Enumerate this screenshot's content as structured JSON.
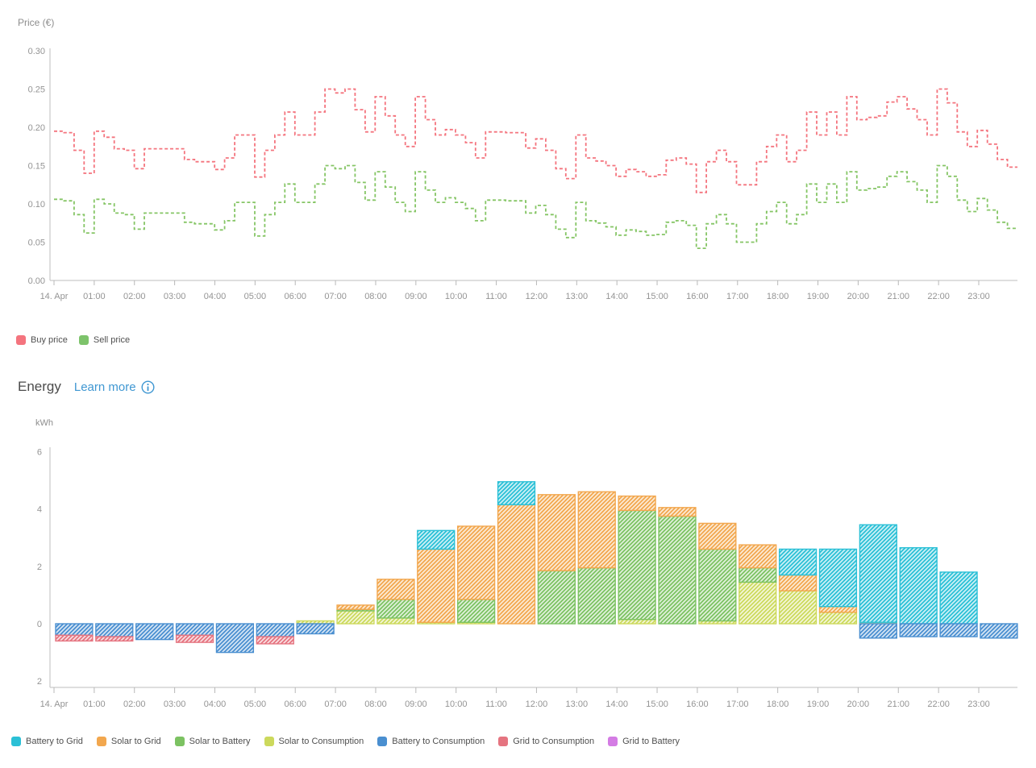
{
  "price_chart": {
    "title": "Price (€)",
    "y_ticks": [
      {
        "label": "0.30",
        "value": 0.3
      },
      {
        "label": "0.25",
        "value": 0.25
      },
      {
        "label": "0.20",
        "value": 0.2
      },
      {
        "label": "0.15",
        "value": 0.15
      },
      {
        "label": "0.10",
        "value": 0.1
      },
      {
        "label": "0.05",
        "value": 0.05
      },
      {
        "label": "0.00",
        "value": 0.0
      }
    ],
    "x_labels": [
      "14. Apr",
      "01:00",
      "02:00",
      "03:00",
      "04:00",
      "05:00",
      "06:00",
      "07:00",
      "08:00",
      "09:00",
      "10:00",
      "11:00",
      "12:00",
      "13:00",
      "14:00",
      "15:00",
      "16:00",
      "17:00",
      "18:00",
      "19:00",
      "20:00",
      "21:00",
      "22:00",
      "23:00"
    ],
    "legend": [
      {
        "label": "Buy price",
        "color": "#f4747e"
      },
      {
        "label": "Sell price",
        "color": "#7dc36b"
      }
    ]
  },
  "energy_section": {
    "title": "Energy",
    "link_label": "Learn more",
    "info_icon": "info-icon",
    "link_color": "#3f97d2"
  },
  "energy_chart": {
    "unit": "kWh",
    "y_ticks": [
      {
        "label": "6",
        "value": 6
      },
      {
        "label": "4",
        "value": 4
      },
      {
        "label": "2",
        "value": 2
      },
      {
        "label": "0",
        "value": 0
      },
      {
        "label": "2",
        "value": -2
      }
    ],
    "x_labels": [
      "14. Apr",
      "01:00",
      "02:00",
      "03:00",
      "04:00",
      "05:00",
      "06:00",
      "07:00",
      "08:00",
      "09:00",
      "10:00",
      "11:00",
      "12:00",
      "13:00",
      "14:00",
      "15:00",
      "16:00",
      "17:00",
      "18:00",
      "19:00",
      "20:00",
      "21:00",
      "22:00",
      "23:00"
    ]
  },
  "chart_data": [
    {
      "type": "line",
      "subtype": "step-dashed",
      "title": "Price (€)",
      "ylabel": "Price (€)",
      "ylim": [
        0,
        0.3
      ],
      "interval_minutes": 15,
      "x_start": "14. Apr 00:00",
      "x_end": "15. Apr 00:00",
      "grid": false,
      "legend_position": "bottom-left",
      "series": [
        {
          "name": "Buy price",
          "color": "#f4747e",
          "values": [
            0.195,
            0.193,
            0.17,
            0.14,
            0.195,
            0.187,
            0.172,
            0.17,
            0.146,
            0.172,
            0.172,
            0.172,
            0.172,
            0.158,
            0.155,
            0.155,
            0.145,
            0.16,
            0.19,
            0.19,
            0.135,
            0.17,
            0.19,
            0.22,
            0.19,
            0.19,
            0.22,
            0.25,
            0.245,
            0.25,
            0.223,
            0.194,
            0.24,
            0.215,
            0.19,
            0.175,
            0.24,
            0.21,
            0.19,
            0.197,
            0.19,
            0.18,
            0.16,
            0.194,
            0.194,
            0.193,
            0.193,
            0.173,
            0.185,
            0.17,
            0.146,
            0.133,
            0.19,
            0.16,
            0.156,
            0.15,
            0.136,
            0.145,
            0.142,
            0.136,
            0.138,
            0.157,
            0.16,
            0.152,
            0.115,
            0.155,
            0.17,
            0.155,
            0.125,
            0.125,
            0.155,
            0.175,
            0.19,
            0.155,
            0.17,
            0.22,
            0.19,
            0.22,
            0.19,
            0.24,
            0.21,
            0.213,
            0.215,
            0.233,
            0.24,
            0.224,
            0.21,
            0.19,
            0.25,
            0.232,
            0.194,
            0.175,
            0.196,
            0.178,
            0.158,
            0.148
          ]
        },
        {
          "name": "Sell price",
          "color": "#85c565",
          "values": [
            0.106,
            0.104,
            0.086,
            0.062,
            0.106,
            0.1,
            0.088,
            0.086,
            0.067,
            0.088,
            0.088,
            0.088,
            0.088,
            0.076,
            0.074,
            0.074,
            0.066,
            0.078,
            0.102,
            0.102,
            0.058,
            0.086,
            0.102,
            0.126,
            0.102,
            0.102,
            0.126,
            0.15,
            0.146,
            0.15,
            0.128,
            0.105,
            0.142,
            0.122,
            0.102,
            0.09,
            0.142,
            0.118,
            0.102,
            0.108,
            0.102,
            0.094,
            0.078,
            0.105,
            0.105,
            0.104,
            0.104,
            0.088,
            0.098,
            0.086,
            0.067,
            0.056,
            0.102,
            0.078,
            0.075,
            0.07,
            0.059,
            0.066,
            0.064,
            0.059,
            0.06,
            0.076,
            0.078,
            0.072,
            0.042,
            0.074,
            0.086,
            0.074,
            0.05,
            0.05,
            0.074,
            0.09,
            0.102,
            0.074,
            0.086,
            0.126,
            0.102,
            0.126,
            0.102,
            0.142,
            0.118,
            0.12,
            0.122,
            0.136,
            0.142,
            0.129,
            0.118,
            0.102,
            0.15,
            0.136,
            0.105,
            0.09,
            0.107,
            0.092,
            0.076,
            0.068
          ]
        }
      ]
    },
    {
      "type": "bar",
      "stacked": true,
      "hatched": true,
      "title": "Energy",
      "ylabel": "kWh",
      "ylim": [
        -2.6,
        6
      ],
      "grid": false,
      "legend_position": "bottom-left",
      "categories": [
        "14. Apr",
        "01:00",
        "02:00",
        "03:00",
        "04:00",
        "05:00",
        "06:00",
        "07:00",
        "08:00",
        "09:00",
        "10:00",
        "11:00",
        "12:00",
        "13:00",
        "14:00",
        "15:00",
        "16:00",
        "17:00",
        "18:00",
        "19:00",
        "20:00",
        "21:00",
        "22:00",
        "23:00"
      ],
      "series": [
        {
          "name": "Battery to Grid",
          "color": "#2bc0d6",
          "values": [
            0,
            0,
            0,
            0,
            0,
            0,
            0,
            0,
            0,
            0.65,
            0,
            0.8,
            0,
            0,
            0,
            0,
            0,
            0,
            0.9,
            2.0,
            3.4,
            2.65,
            1.8,
            0
          ]
        },
        {
          "name": "Solar to Grid",
          "color": "#f2a74e",
          "values": [
            0,
            0,
            0,
            0,
            0,
            0,
            0,
            0.15,
            0.7,
            2.55,
            2.55,
            4.15,
            2.65,
            2.65,
            0.5,
            0.3,
            0.9,
            0.8,
            0.55,
            0.2,
            0,
            0,
            0,
            0
          ]
        },
        {
          "name": "Solar to Battery",
          "color": "#7cc262",
          "values": [
            0,
            0,
            0,
            0,
            0,
            0,
            0,
            0.05,
            0.65,
            0,
            0.8,
            0,
            1.85,
            1.95,
            3.8,
            3.75,
            2.5,
            0.5,
            0,
            0,
            0,
            0,
            0,
            0
          ]
        },
        {
          "name": "Solar to Consumption",
          "color": "#ccd95c",
          "values": [
            0,
            0,
            0,
            0,
            0,
            0,
            0.1,
            0.45,
            0.2,
            0.05,
            0.05,
            0,
            0,
            0,
            0.15,
            0,
            0.1,
            1.45,
            1.15,
            0.4,
            0.05,
            0,
            0,
            0
          ]
        },
        {
          "name": "Battery to Consumption",
          "color": "#4a8fd0",
          "values": [
            -0.4,
            -0.45,
            -0.55,
            -0.4,
            -1.0,
            -0.45,
            -0.35,
            0,
            0,
            0,
            0,
            0,
            0,
            0,
            0,
            0,
            0,
            0,
            0,
            0,
            -0.5,
            -0.45,
            -0.45,
            -0.5
          ]
        },
        {
          "name": "Grid to Consumption",
          "color": "#e57480",
          "values": [
            -0.2,
            -0.15,
            0,
            -0.25,
            0,
            -0.25,
            0,
            0,
            0,
            0,
            0,
            0,
            0,
            0,
            0,
            0,
            0,
            0,
            0,
            0,
            0,
            0,
            0,
            0
          ]
        },
        {
          "name": "Grid to Battery",
          "color": "#d47ce4",
          "values": [
            0,
            0,
            0,
            0,
            0,
            0,
            0,
            0,
            0,
            0,
            0,
            0,
            0,
            0,
            0,
            0,
            0,
            0,
            0,
            0,
            0,
            0,
            0,
            0
          ]
        }
      ]
    }
  ]
}
